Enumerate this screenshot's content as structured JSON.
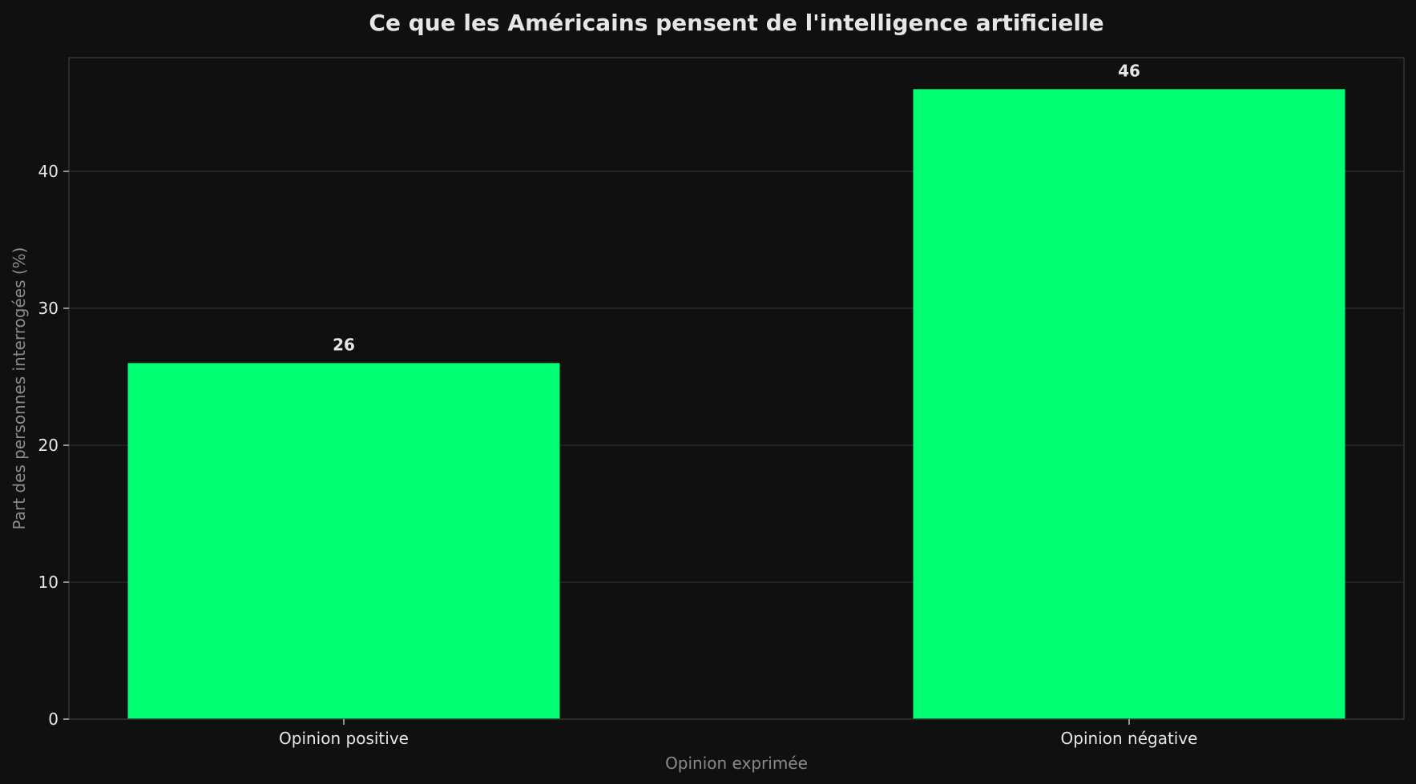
{
  "colors": {
    "background": "#101010",
    "bar": "#00ff73"
  },
  "chart_data": {
    "type": "bar",
    "title": "Ce que les Américains pensent de l'intelligence artificielle",
    "xlabel": "Opinion exprimée",
    "ylabel": "Part des personnes interrogées (%)",
    "categories": [
      "Opinion positive",
      "Opinion négative"
    ],
    "values": [
      26,
      46
    ],
    "value_labels": [
      "26",
      "46"
    ],
    "ylim": [
      0,
      48.3
    ],
    "yticks": [
      0,
      10,
      20,
      30,
      40
    ],
    "grid": true,
    "legend": "none"
  }
}
